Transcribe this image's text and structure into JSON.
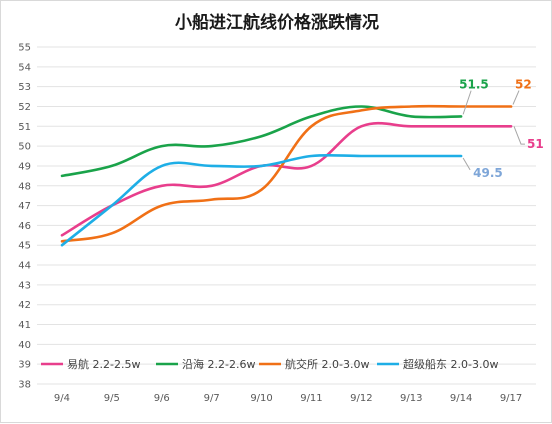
{
  "chart_data": {
    "type": "line",
    "title": "小船进江航线价格涨跌情况",
    "xlabel": "",
    "ylabel": "",
    "categories": [
      "9/4",
      "9/5",
      "9/6",
      "9/7",
      "9/10",
      "9/11",
      "9/12",
      "9/13",
      "9/14",
      "9/17"
    ],
    "ylim": [
      38,
      55
    ],
    "yticks": [
      38,
      39,
      40,
      41,
      42,
      43,
      44,
      45,
      46,
      47,
      48,
      49,
      50,
      51,
      52,
      53,
      54,
      55
    ],
    "grid": true,
    "smooth": true,
    "legend_position": "bottom",
    "series": [
      {
        "name": "易航 2.2-2.5w",
        "color": "#e83e8c",
        "values": [
          45.5,
          47,
          48,
          48,
          49,
          49,
          51,
          51,
          51,
          51
        ],
        "end_label": "51"
      },
      {
        "name": "沿海 2.2-2.6w",
        "color": "#1aa34a",
        "values": [
          48.5,
          49,
          50,
          50,
          50.5,
          51.5,
          52,
          51.5,
          51.5,
          null
        ],
        "end_label": "51.5"
      },
      {
        "name": "航交所 2.0-3.0w",
        "color": "#f07016",
        "values": [
          45.2,
          45.6,
          47,
          47.3,
          47.8,
          51,
          51.8,
          52,
          52,
          52
        ],
        "end_label": "52"
      },
      {
        "name": "超级船东 2.0-3.0w",
        "color": "#1eaee6",
        "values": [
          45,
          47,
          49,
          49,
          49,
          49.5,
          49.5,
          49.5,
          49.5,
          null
        ],
        "end_label": "49.5",
        "end_label_color": "#7ea6d8"
      }
    ]
  }
}
